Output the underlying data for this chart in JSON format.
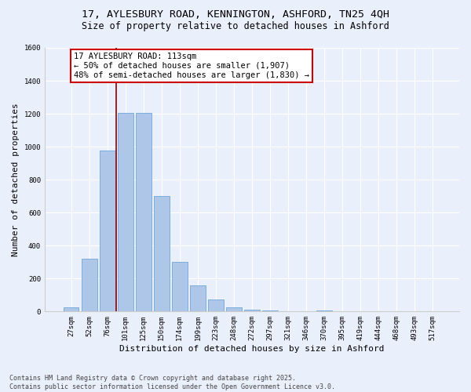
{
  "title_line1": "17, AYLESBURY ROAD, KENNINGTON, ASHFORD, TN25 4QH",
  "title_line2": "Size of property relative to detached houses in Ashford",
  "xlabel": "Distribution of detached houses by size in Ashford",
  "ylabel": "Number of detached properties",
  "categories": [
    "27sqm",
    "52sqm",
    "76sqm",
    "101sqm",
    "125sqm",
    "150sqm",
    "174sqm",
    "199sqm",
    "223sqm",
    "248sqm",
    "272sqm",
    "297sqm",
    "321sqm",
    "346sqm",
    "370sqm",
    "395sqm",
    "419sqm",
    "444sqm",
    "468sqm",
    "493sqm",
    "517sqm"
  ],
  "values": [
    25,
    320,
    975,
    1205,
    1205,
    700,
    300,
    160,
    75,
    25,
    12,
    5,
    0,
    0,
    5,
    0,
    0,
    0,
    0,
    0,
    0
  ],
  "bar_color": "#aec6e8",
  "bar_edge_color": "#5b9bd5",
  "vline_x": 2.5,
  "vline_color": "#8b0000",
  "annotation_text": "17 AYLESBURY ROAD: 113sqm\n← 50% of detached houses are smaller (1,907)\n48% of semi-detached houses are larger (1,830) →",
  "annotation_box_color": "#ffffff",
  "annotation_box_edge": "#cc0000",
  "ylim": [
    0,
    1600
  ],
  "yticks": [
    0,
    200,
    400,
    600,
    800,
    1000,
    1200,
    1400,
    1600
  ],
  "background_color": "#eaf0fb",
  "plot_bg_color": "#eaf0fb",
  "footer_line1": "Contains HM Land Registry data © Crown copyright and database right 2025.",
  "footer_line2": "Contains public sector information licensed under the Open Government Licence v3.0.",
  "grid_color": "#ffffff",
  "title_fontsize": 9.5,
  "subtitle_fontsize": 8.5,
  "axis_label_fontsize": 8,
  "tick_fontsize": 6.5,
  "annotation_fontsize": 7.5,
  "footer_fontsize": 6
}
